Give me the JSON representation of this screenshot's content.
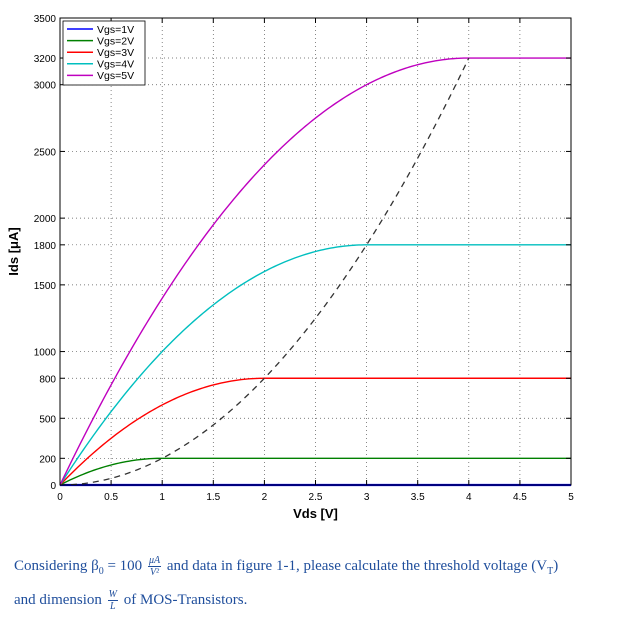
{
  "chart_data": {
    "type": "line",
    "title": "",
    "xlabel": "Vds [V]",
    "ylabel": "Ids [μA]",
    "xlim": [
      0,
      5
    ],
    "ylim": [
      0,
      3500
    ],
    "x_ticks": [
      0,
      0.5,
      1,
      1.5,
      2,
      2.5,
      3,
      3.5,
      4,
      4.5,
      5
    ],
    "x_tick_labels": [
      "0",
      "0.5",
      "1",
      "1.5",
      "2",
      "2.5",
      "3",
      "3.5",
      "4",
      "4.5",
      "5"
    ],
    "y_ticks": [
      0,
      200,
      500,
      800,
      1000,
      1500,
      1800,
      2000,
      2500,
      3000,
      3200,
      3500
    ],
    "y_tick_labels": [
      "0",
      "200",
      "500",
      "800",
      "1000",
      "1500",
      "1800",
      "2000",
      "2500",
      "3000",
      "3200",
      "3500"
    ],
    "grid": true,
    "legend_position": "top-left",
    "series": [
      {
        "name": "Vgs=1V",
        "color": "#0000ff",
        "saturation_vds": 0,
        "saturation_ids": 0
      },
      {
        "name": "Vgs=2V",
        "color": "#008000",
        "saturation_vds": 1,
        "saturation_ids": 200
      },
      {
        "name": "Vgs=3V",
        "color": "#ff0000",
        "saturation_vds": 2,
        "saturation_ids": 800
      },
      {
        "name": "Vgs=4V",
        "color": "#00bfbf",
        "saturation_vds": 3,
        "saturation_ids": 1800
      },
      {
        "name": "Vgs=5V",
        "color": "#bf00bf",
        "saturation_vds": 4,
        "saturation_ids": 3200
      }
    ],
    "boundary_curve": {
      "color": "#333333",
      "style": "dashed",
      "x": [
        0,
        1,
        2,
        3,
        4
      ],
      "y": [
        0,
        200,
        800,
        1800,
        3200
      ]
    }
  },
  "question": {
    "part1": "Considering β",
    "beta_sub": "0",
    "part2": " = 100 ",
    "unit_num": "μA",
    "unit_den": "V²",
    "part3": " and data in figure 1-1, please calculate the threshold voltage (V",
    "vt_sub": "T",
    "part4": ")",
    "part5": "and dimension ",
    "wl_num": "W",
    "wl_den": "L",
    "part6": " of MOS-Transistors."
  }
}
